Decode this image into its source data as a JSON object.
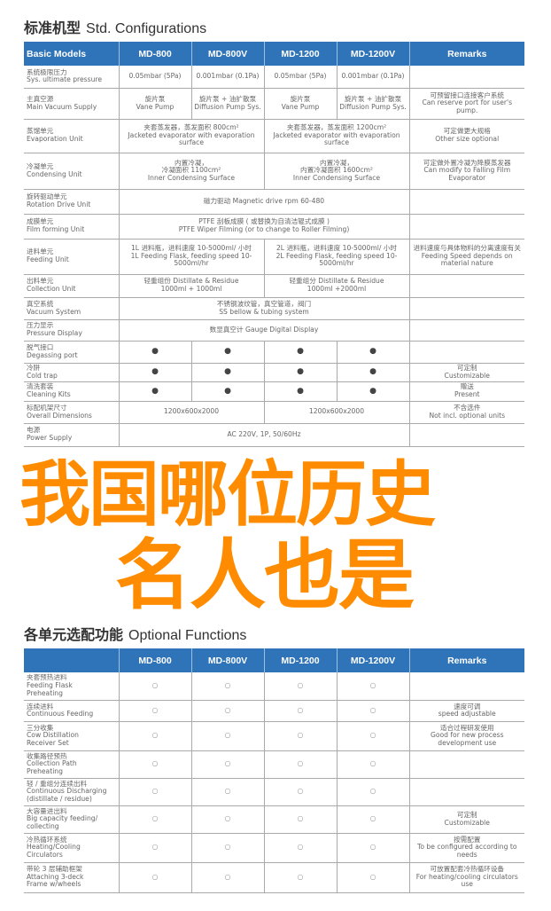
{
  "section1": {
    "title_cn": "标准机型",
    "title_en": "Std. Configurations",
    "headers": [
      "Basic Models",
      "MD-800",
      "MD-800V",
      "MD-1200",
      "MD-1200V",
      "Remarks"
    ],
    "rows": [
      {
        "label": "系统极限压力\nSys. ultimate pressure",
        "cells": [
          [
            "0.05mbar (5Pa)",
            1
          ],
          [
            "0.001mbar (0.1Pa)",
            1
          ],
          [
            "0.05mbar (5Pa)",
            1
          ],
          [
            "0.001mbar (0.1Pa)",
            1
          ],
          [
            "",
            1
          ]
        ],
        "h": 25
      },
      {
        "label": "主真空源\nMain Vacuum Supply",
        "cells": [
          [
            "旋片泵\nVane Pump",
            1
          ],
          [
            "旋片泵 + 油扩散泵\nDiffusion Pump Sys.",
            1
          ],
          [
            "旋片泵\nVane Pump",
            1
          ],
          [
            "旋片泵 + 油扩散泵\nDiffusion Pump Sys.",
            1
          ],
          [
            "可预留接口连接客户系统\nCan reserve port for user's pump.",
            1
          ]
        ],
        "h": 35
      },
      {
        "label": "蒸馏单元\nEvaporation Unit",
        "cells": [
          [
            "夹套蒸发器，蒸发面积 800cm²\nJacketed evaporator with evaporation surface",
            2
          ],
          [
            "夹套蒸发器，蒸发面积 1200cm²\nJacketed evaporator with evaporation surface",
            2
          ],
          [
            "可定做更大规格\nOther size optional",
            1
          ]
        ],
        "h": 38
      },
      {
        "label": "冷凝单元\nCondensing Unit",
        "cells": [
          [
            "内置冷凝，\n冷凝面积 1100cm²\nInner Condensing Surface",
            2
          ],
          [
            "内置冷凝，\n内置冷凝面积 1600cm²\nInner Condensing Surface",
            2
          ],
          [
            "可定做外置冷凝为降膜蒸发器\nCan modify to Falling Film Evaporator",
            1
          ]
        ],
        "h": 41
      },
      {
        "label": "旋转驱动单元\nRotation Drive Unit",
        "cells": [
          [
            "磁力驱动 Magnetic drive rpm 60-480",
            4
          ],
          [
            "",
            1
          ]
        ],
        "h": 28
      },
      {
        "label": "成膜单元\nFilm forming Unit",
        "cells": [
          [
            "PTFE 刮板成膜 ( 或替换为自清洁辊式成膜 )\nPTFE Wiper Filming (or to change to Roller Filming)",
            4
          ],
          [
            "",
            1
          ]
        ],
        "h": 28
      },
      {
        "label": "进料单元\nFeeding Unit",
        "cells": [
          [
            "1L 进料瓶，进料速度 10-5000ml/ 小时\n1L Feeding Flask, feeding speed 10-5000ml/hr",
            2
          ],
          [
            "2L 进料瓶，进料速度 10-5000ml/ 小时\n2L Feeding Flask, feeding speed 10-5000ml/hr",
            2
          ],
          [
            "进料速度与具体物料的分离速度有关 Feeding Speed depends on material nature",
            1
          ]
        ],
        "h": 40
      },
      {
        "label": "出料单元\nCollection Unit",
        "cells": [
          [
            "轻重组份 Distillate & Residue\n1000ml + 1000ml",
            2
          ],
          [
            "轻重组分 Distillate & Residue\n1000ml +2000ml",
            2
          ],
          [
            "",
            1
          ]
        ],
        "h": 26
      },
      {
        "label": "真空系统\nVacuum System",
        "cells": [
          [
            "不锈钢波纹管，真空管道，阀门\nSS bellow & tubing system",
            4
          ],
          [
            "",
            1
          ]
        ],
        "h": 25
      },
      {
        "label": "压力显示\nPressure Display",
        "cells": [
          [
            "数显真空计 Gauge Digital Display",
            4
          ],
          [
            "",
            1
          ]
        ],
        "h": 24
      },
      {
        "label": "脱气接口\nDegassing port",
        "cells": [
          [
            "●",
            1
          ],
          [
            "●",
            1
          ],
          [
            "●",
            1
          ],
          [
            "●",
            1
          ],
          [
            "",
            1
          ]
        ],
        "h": 25
      },
      {
        "label": "冷阱\nCold trap",
        "cells": [
          [
            "●",
            1
          ],
          [
            "●",
            1
          ],
          [
            "●",
            1
          ],
          [
            "●",
            1
          ],
          [
            "可定制\nCustomizable",
            1
          ]
        ],
        "h": 21
      },
      {
        "label": "清洗套装\nCleaning Kits",
        "cells": [
          [
            "●",
            1
          ],
          [
            "●",
            1
          ],
          [
            "●",
            1
          ],
          [
            "●",
            1
          ],
          [
            "赠送\nPresent",
            1
          ]
        ],
        "h": 22
      },
      {
        "label": "标配机架尺寸\nOverall Dimensions",
        "cells": [
          [
            "1200x600x2000",
            2
          ],
          [
            "1200x600x2000",
            2
          ],
          [
            "不含选件\nNot incl. optional units",
            1
          ]
        ],
        "h": 25
      },
      {
        "label": "电源\nPower Supply",
        "cells": [
          [
            "AC 220V, 1P, 50/60Hz",
            4
          ],
          [
            "",
            1
          ]
        ],
        "h": 26
      }
    ]
  },
  "section2": {
    "title_cn": "各单元选配功能",
    "title_en": "Optional Functions",
    "headers": [
      "",
      "MD-800",
      "MD-800V",
      "MD-1200",
      "MD-1200V",
      "Remarks"
    ],
    "rows": [
      {
        "label": "夹套预热进料\nFeeding Flask\nPreheating",
        "cells": [
          [
            "○",
            1
          ],
          [
            "○",
            1
          ],
          [
            "○",
            1
          ],
          [
            "○",
            1
          ],
          [
            "",
            1
          ]
        ],
        "h": 31
      },
      {
        "label": "连续进料\nContinuous Feeding",
        "cells": [
          [
            "○",
            1
          ],
          [
            "○",
            1
          ],
          [
            "○",
            1
          ],
          [
            "○",
            1
          ],
          [
            "速度可调\nspeed adjustable",
            1
          ]
        ],
        "h": 24
      },
      {
        "label": "三分收集\nCow Distillation\nReceiver Set",
        "cells": [
          [
            "○",
            1
          ],
          [
            "○",
            1
          ],
          [
            "○",
            1
          ],
          [
            "○",
            1
          ],
          [
            "适合过程研发使用\nGood for new process development use",
            1
          ]
        ],
        "h": 33
      },
      {
        "label": "收集路径预热\nCollection Path\nPreheating",
        "cells": [
          [
            "○",
            1
          ],
          [
            "○",
            1
          ],
          [
            "○",
            1
          ],
          [
            "○",
            1
          ],
          [
            "",
            1
          ]
        ],
        "h": 31
      },
      {
        "label": "轻 / 重组分连续出料\nContinuous Discharging\n(distillate / residue)",
        "cells": [
          [
            "○",
            1
          ],
          [
            "○",
            1
          ],
          [
            "○",
            1
          ],
          [
            "○",
            1
          ],
          [
            "",
            1
          ]
        ],
        "h": 31
      },
      {
        "label": "大容量进出料\nBig capacity feeding/\ncollecting",
        "cells": [
          [
            "○",
            1
          ],
          [
            "○",
            1
          ],
          [
            "○",
            1
          ],
          [
            "○",
            1
          ],
          [
            "可定制\nCustomizable",
            1
          ]
        ],
        "h": 31
      },
      {
        "label": "冷热循环系统\nHeating/Cooling\nCirculators",
        "cells": [
          [
            "○",
            1
          ],
          [
            "○",
            1
          ],
          [
            "○",
            1
          ],
          [
            "○",
            1
          ],
          [
            "按需配置\nTo be configured according to needs",
            1
          ]
        ],
        "h": 33
      },
      {
        "label": "带轮 3 层辅助框架\nAttaching 3-deck\nFrame w/wheels",
        "cells": [
          [
            "○",
            1
          ],
          [
            "○",
            1
          ],
          [
            "○",
            1
          ],
          [
            "○",
            1
          ],
          [
            "可放置配套冷热循环设备\nFor heating/cooling circulators use",
            1
          ]
        ],
        "h": 34
      }
    ]
  },
  "overlay": {
    "line1": "我国哪位历史",
    "line2": "名人也是",
    "color": "#ff8c00"
  },
  "colors": {
    "header_bg": "#2f73b8"
  }
}
